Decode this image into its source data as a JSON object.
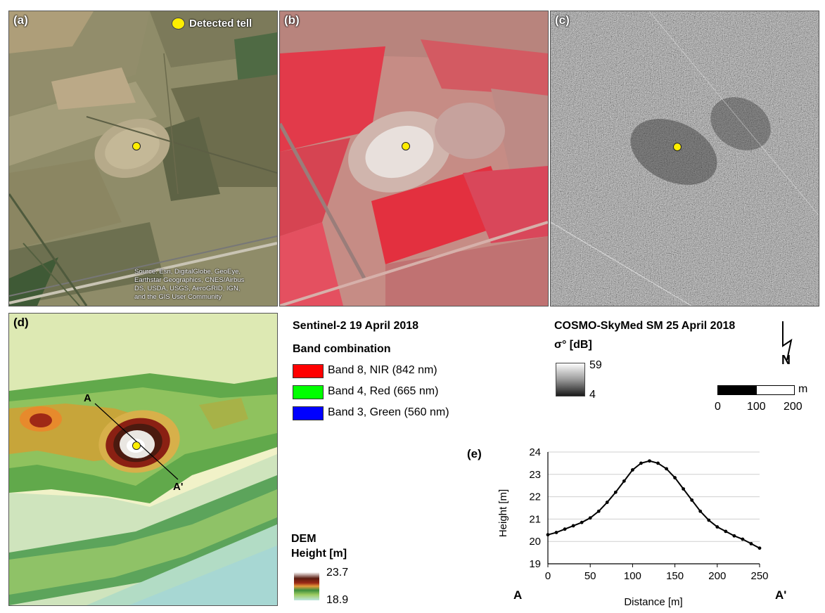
{
  "panels": {
    "a": {
      "label": "(a)",
      "legend_label": "Detected tell",
      "credit": [
        "Source: Esri, DigitalGlobe, GeoEye,",
        "Earthstar Geographics, CNES/Airbus",
        "DS, USDA, USGS, AeroGRID, IGN,",
        "and the GIS User Community"
      ]
    },
    "b": {
      "label": "(b)"
    },
    "c": {
      "label": "(c)"
    },
    "d": {
      "label": "(d)",
      "profile_start": "A",
      "profile_end": "A'"
    },
    "e": {
      "label": "(e)"
    }
  },
  "sentinel": {
    "title": "Sentinel-2 19 April 2018",
    "subtitle": "Band combination",
    "bands": [
      {
        "label": "Band 8, NIR (842 nm)",
        "color": "#ff0000"
      },
      {
        "label": "Band 4, Red (665 nm)",
        "color": "#00ff00"
      },
      {
        "label": "Band 3, Green (560 nm)",
        "color": "#0000ff"
      }
    ]
  },
  "cosmo": {
    "title": "COSMO-SkyMed SM 25 April 2018",
    "unit": "σ° [dB]",
    "max": "59",
    "min": "4"
  },
  "north_arrow": "N",
  "scalebar": {
    "unit": "m",
    "ticks": [
      "0",
      "100",
      "200"
    ]
  },
  "dem": {
    "title": "DEM",
    "unit": "Height [m]",
    "max": "23.7",
    "min": "18.9"
  },
  "colors": {
    "tell_marker": "#ffee00"
  },
  "chart_data": {
    "type": "line",
    "title": "",
    "xlabel": "Distance [m]",
    "ylabel": "Height [m]",
    "xlim": [
      0,
      250
    ],
    "ylim": [
      19,
      24
    ],
    "xticks": [
      0,
      50,
      100,
      150,
      200,
      250
    ],
    "yticks": [
      19,
      20,
      21,
      22,
      23,
      24
    ],
    "x_left_label": "A",
    "x_right_label": "A'",
    "grid": true,
    "series": [
      {
        "x": [
          0,
          10,
          20,
          30,
          40,
          50,
          60,
          70,
          80,
          90,
          100,
          110,
          120,
          130,
          140,
          150,
          160,
          170,
          180,
          190,
          200,
          210,
          220,
          230,
          240,
          250
        ],
        "values": [
          20.3,
          20.4,
          20.55,
          20.7,
          20.85,
          21.05,
          21.35,
          21.75,
          22.2,
          22.7,
          23.2,
          23.5,
          23.6,
          23.5,
          23.25,
          22.85,
          22.35,
          21.85,
          21.35,
          20.95,
          20.65,
          20.45,
          20.25,
          20.1,
          19.9,
          19.7
        ]
      }
    ]
  }
}
